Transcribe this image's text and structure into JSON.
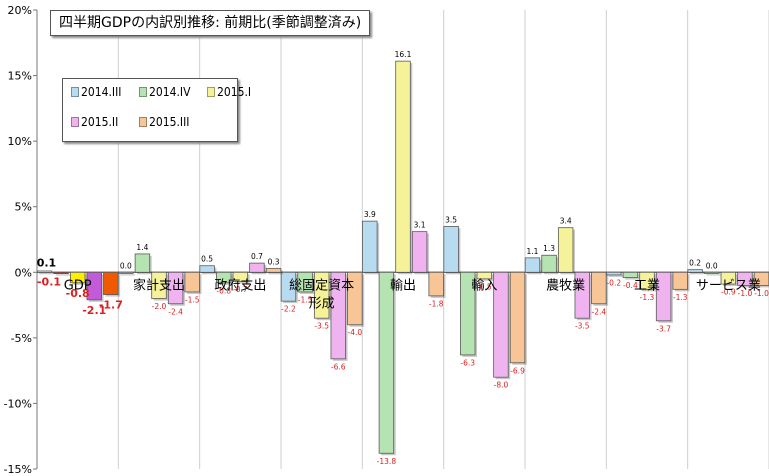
{
  "chart_data": {
    "type": "bar",
    "title": "四半期GDPの内訳別推移: 前期比(季節調整済み)",
    "categories": [
      "GDP",
      "家計支出",
      "政府支出",
      "総固定資本形成",
      "輸出",
      "輸入",
      "農牧業",
      "工業",
      "サービス業"
    ],
    "category_labels": [
      "GDP",
      "家計支出",
      "政府支出",
      "総固定資本\n形成",
      "輸出",
      "輸入",
      "農牧業",
      "工業",
      "サービス業"
    ],
    "series": [
      {
        "name": "2014.III",
        "color": "#b7dcf2",
        "values": [
          0.1,
          0.0,
          0.5,
          -2.2,
          3.9,
          3.5,
          1.1,
          -0.2,
          0.2
        ]
      },
      {
        "name": "2014.IV",
        "color": "#b5e3b1",
        "values": [
          -0.1,
          1.4,
          -0.8,
          -1.5,
          -13.8,
          -6.3,
          1.3,
          -0.4,
          0.0
        ]
      },
      {
        "name": "2015.I",
        "color": "#f5f29a",
        "values": [
          -0.8,
          -2.0,
          -0.7,
          -3.5,
          16.1,
          -0.5,
          3.4,
          -1.3,
          -0.9
        ]
      },
      {
        "name": "2015.II",
        "color": "#efb3ef",
        "values": [
          -2.1,
          -2.4,
          0.7,
          -6.6,
          3.1,
          -8.0,
          -3.5,
          -3.7,
          -1.0
        ]
      },
      {
        "name": "2015.III",
        "color": "#f7c596",
        "values": [
          -1.7,
          -1.5,
          0.3,
          -4.0,
          -1.8,
          -6.9,
          -2.4,
          -1.3,
          -1.0
        ]
      }
    ],
    "gdp_highlight_colors": [
      "#ffffff",
      "#dc1f1f",
      "#ffee00",
      "#c25bd8",
      "#ef5a00"
    ],
    "data_label_color_positive": "#000000",
    "data_label_color_negative": "#dc1f1f",
    "ylim": [
      -15,
      20
    ],
    "yticks": [
      -15,
      -10,
      -5,
      0,
      5,
      10,
      15,
      20
    ],
    "ytick_labels": [
      "-15%",
      "-10%",
      "-5%",
      "0%",
      "5%",
      "10%",
      "15%",
      "20%"
    ],
    "xlabel": "",
    "ylabel": "",
    "grid": {
      "vertical_gridlines": true,
      "horizontal_gridlines": false
    },
    "legend_position": "top-left"
  }
}
